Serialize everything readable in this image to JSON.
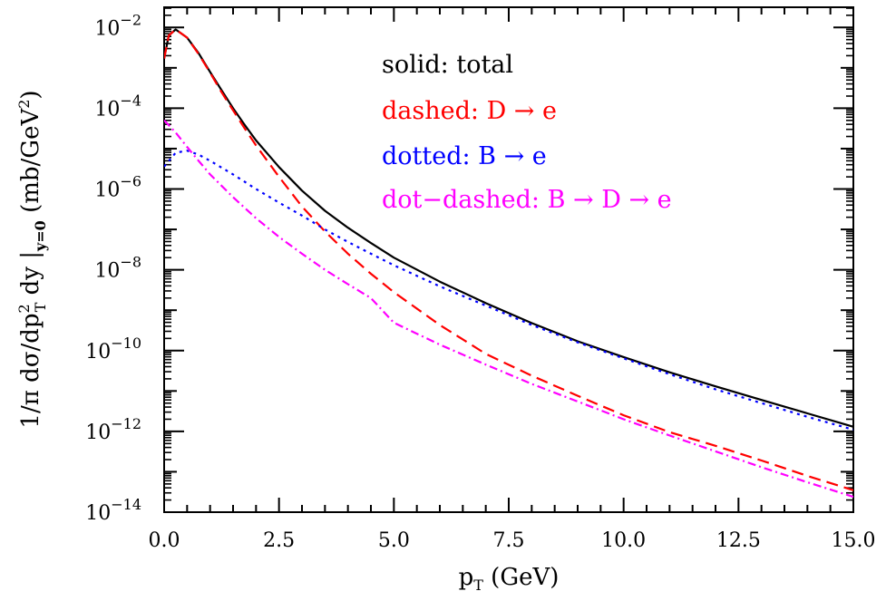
{
  "chart_data": {
    "type": "line",
    "title": "",
    "xlabel": "pT (GeV)",
    "xlabel_parts": {
      "base": "p",
      "sub": "T",
      "rest": "(GeV)"
    },
    "ylabel": "1/π dσ/dpT² dy |y=0 (mb/GeV²)",
    "ylabel_parts": {
      "p1": "1/π dσ/dp",
      "p1_sup": "2",
      "p1_sub": "T",
      "p2": " dy |",
      "p2_sub": "y=0",
      "p3": " (mb/GeV",
      "p3_sup": "2",
      "p4": ")"
    },
    "xlim": [
      0,
      15
    ],
    "ylim_log10": [
      -14,
      -1.5
    ],
    "yscale": "log",
    "x_ticks": [
      "0.0",
      "2.5",
      "5.0",
      "7.5",
      "10.0",
      "12.5",
      "15.0"
    ],
    "x_tick_values": [
      0,
      2.5,
      5,
      7.5,
      10,
      12.5,
      15
    ],
    "y_ticks": [
      {
        "base": "10",
        "exp": "−2",
        "log": -2
      },
      {
        "base": "10",
        "exp": "−4",
        "log": -4
      },
      {
        "base": "10",
        "exp": "−6",
        "log": -6
      },
      {
        "base": "10",
        "exp": "−8",
        "log": -8
      },
      {
        "base": "10",
        "exp": "−10",
        "log": -10
      },
      {
        "base": "10",
        "exp": "−12",
        "log": -12
      },
      {
        "base": "10",
        "exp": "−14",
        "log": -14
      }
    ],
    "legend": [
      {
        "text": "solid: total",
        "color": "#000000"
      },
      {
        "text": "dashed: D → e",
        "color": "#ff0000"
      },
      {
        "text": "dotted: B → e",
        "color": "#0000ff"
      },
      {
        "text": "dot−dashed: B → D → e",
        "color": "#ff00ff"
      }
    ],
    "legend_placement": "top-right",
    "series": [
      {
        "style": "solid",
        "color": "#000000",
        "x": [
          0,
          0.1,
          0.25,
          0.5,
          0.75,
          1,
          1.25,
          1.5,
          1.75,
          2,
          2.5,
          3,
          3.5,
          4,
          4.5,
          5,
          6,
          7,
          8,
          9,
          10,
          11,
          12,
          13,
          14,
          15
        ],
        "y": [
          0.0017,
          0.0063,
          0.0089,
          0.0056,
          0.0023,
          0.00079,
          0.00028,
          0.0001,
          3.9e-05,
          1.6e-05,
          3.5e-06,
          9.1e-07,
          2.9e-07,
          1.1e-07,
          4.6e-08,
          2e-08,
          5.1e-09,
          1.5e-09,
          4.8e-10,
          1.7e-10,
          6.9e-11,
          2.9e-11,
          1.3e-11,
          6e-12,
          2.8e-12,
          1.3e-12
        ]
      },
      {
        "style": "dashed",
        "color": "#ff0000",
        "x": [
          0,
          0.1,
          0.25,
          0.5,
          0.75,
          1,
          1.25,
          1.5,
          1.75,
          2,
          2.5,
          3,
          3.5,
          4,
          4.5,
          5,
          6,
          7,
          8,
          9,
          10,
          11,
          12,
          13,
          14,
          15
        ],
        "y": [
          0.0017,
          0.0063,
          0.0089,
          0.0056,
          0.0022,
          0.00076,
          0.00025,
          8.9e-05,
          3.2e-05,
          1.2e-05,
          2e-06,
          3.7e-07,
          8.9e-08,
          2.5e-08,
          8e-09,
          2.8e-09,
          4.3e-10,
          8.3e-11,
          2.4e-11,
          7.6e-12,
          2.5e-12,
          9.6e-13,
          4.4e-13,
          1.9e-13,
          7.9e-14,
          3.5e-14
        ]
      },
      {
        "style": "dotted",
        "color": "#0000ff",
        "x": [
          0,
          0.25,
          0.5,
          0.75,
          1,
          1.5,
          2,
          2.5,
          3,
          3.5,
          4,
          4.5,
          5,
          6,
          7,
          8,
          9,
          10,
          11,
          12,
          13,
          14,
          15
        ],
        "y": [
          3.6e-06,
          7.9e-06,
          8.9e-06,
          7.1e-06,
          5e-06,
          2.3e-06,
          1e-06,
          4.6e-07,
          2.2e-07,
          1e-07,
          4.9e-08,
          2.5e-08,
          1.3e-08,
          3.9e-09,
          1.3e-09,
          4.3e-10,
          1.6e-10,
          6.4e-11,
          2.6e-11,
          1.1e-11,
          5e-12,
          2.3e-12,
          1.1e-12
        ]
      },
      {
        "style": "dot-dashed",
        "color": "#ff00ff",
        "x": [
          0,
          0.1,
          0.25,
          0.5,
          0.75,
          1,
          1.5,
          2,
          2.5,
          3,
          3.5,
          4,
          4.5,
          5,
          6,
          7,
          8,
          9,
          10,
          11,
          12,
          13,
          14,
          15
        ],
        "y": [
          5e-05,
          3.8e-05,
          2.5e-05,
          1.1e-05,
          5e-06,
          2.3e-06,
          6.3e-07,
          1.9e-07,
          6.5e-08,
          2.5e-08,
          1e-08,
          4.4e-09,
          2e-09,
          4.9e-10,
          1.4e-10,
          4.5e-11,
          1.5e-11,
          5.5e-12,
          2e-12,
          7.9e-13,
          3.2e-13,
          1.3e-13,
          5.5e-14,
          2.4e-14
        ]
      }
    ]
  }
}
